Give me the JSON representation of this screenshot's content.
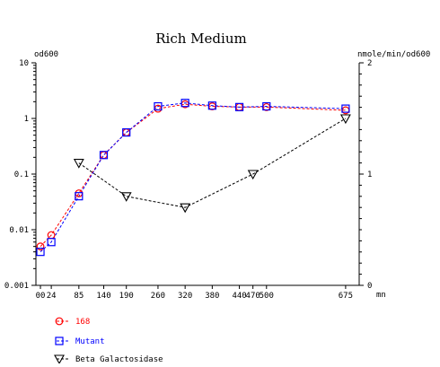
{
  "chart_data": {
    "type": "line",
    "title": "Rich Medium",
    "xlabel": "mn",
    "ylabel_left": "od600",
    "ylabel_right": "nmole/min/od600",
    "x_ticks": [
      0,
      24,
      85,
      140,
      190,
      260,
      320,
      380,
      440,
      470,
      500,
      675
    ],
    "x_tick_labels": [
      "00",
      "24",
      "85",
      "140",
      "190",
      "260",
      "320",
      "380",
      "440",
      "470",
      "500",
      "675"
    ],
    "xlim": [
      -10,
      705
    ],
    "y_left": {
      "scale": "log",
      "lim": [
        0.001,
        10
      ],
      "ticks": [
        0.001,
        0.01,
        0.1,
        1,
        10
      ],
      "tick_labels": [
        "0.001",
        "0.01",
        "0.1",
        "1",
        "10"
      ]
    },
    "y_right": {
      "scale": "linear",
      "lim": [
        0,
        2
      ],
      "ticks": [
        0,
        1,
        2
      ],
      "tick_labels": [
        "0",
        "1",
        "2"
      ]
    },
    "grid": false,
    "legend_position": "bottom-left",
    "series": [
      {
        "name": "168",
        "axis": "left",
        "marker": "circle",
        "color": "#ff0000",
        "x": [
          0,
          24,
          85,
          140,
          190,
          260,
          320,
          380,
          440,
          500,
          675
        ],
        "y": [
          0.005,
          0.008,
          0.045,
          0.22,
          0.56,
          1.5,
          1.8,
          1.65,
          1.6,
          1.6,
          1.4
        ]
      },
      {
        "name": "Mutant",
        "axis": "left",
        "marker": "square",
        "color": "#0000ff",
        "x": [
          0,
          24,
          85,
          140,
          190,
          260,
          320,
          380,
          440,
          500,
          675
        ],
        "y": [
          0.004,
          0.006,
          0.04,
          0.22,
          0.56,
          1.65,
          1.9,
          1.7,
          1.6,
          1.65,
          1.5
        ]
      },
      {
        "name": "Beta Galactosidase",
        "axis": "right",
        "marker": "triangle-down",
        "color": "#000000",
        "x": [
          85,
          190,
          320,
          470,
          675
        ],
        "y": [
          1.1,
          0.8,
          0.7,
          1.0,
          1.5
        ]
      }
    ]
  }
}
